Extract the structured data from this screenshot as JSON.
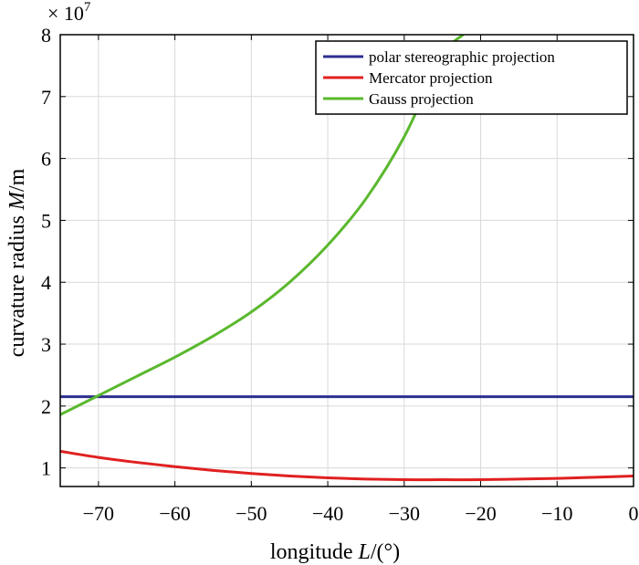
{
  "chart_data": {
    "type": "line",
    "title": "",
    "xlabel": "longitude",
    "xlabel_var": "L",
    "xlabel_unit": "/(°)",
    "ylabel": "curvature radius",
    "ylabel_var": "M",
    "ylabel_unit": "/m",
    "y_multiplier_base": "× 10",
    "y_multiplier_exp": "7",
    "xlim": [
      -75,
      0
    ],
    "ylim": [
      0.7,
      8
    ],
    "xticks": [
      -70,
      -60,
      -50,
      -40,
      -30,
      -20,
      -10,
      0
    ],
    "xtick_labels": [
      "−70",
      "−60",
      "−50",
      "−40",
      "−30",
      "−20",
      "−10",
      "0"
    ],
    "yticks": [
      1,
      2,
      3,
      4,
      5,
      6,
      7,
      8
    ],
    "ytick_labels": [
      "1",
      "2",
      "3",
      "4",
      "5",
      "6",
      "7",
      "8"
    ],
    "grid": true,
    "legend_position": "top-right",
    "series": [
      {
        "name": "polar stereographic projection",
        "color": "#2e2f8f",
        "x": [
          -75,
          -60,
          -45,
          -30,
          -15,
          0
        ],
        "y": [
          2.15,
          2.15,
          2.15,
          2.15,
          2.15,
          2.15
        ]
      },
      {
        "name": "Mercator projection",
        "color": "#e02020",
        "x": [
          -75,
          -70,
          -65,
          -60,
          -55,
          -50,
          -45,
          -40,
          -35,
          -30,
          -25,
          -20,
          -15,
          -10,
          -5,
          0
        ],
        "y": [
          1.27,
          1.17,
          1.09,
          1.02,
          0.96,
          0.91,
          0.87,
          0.84,
          0.82,
          0.81,
          0.81,
          0.81,
          0.82,
          0.83,
          0.85,
          0.87
        ]
      },
      {
        "name": "Gauss projection",
        "color": "#5ab82e",
        "x": [
          -75,
          -70,
          -65,
          -60,
          -55,
          -50,
          -45,
          -40,
          -35,
          -30,
          -25,
          -22.3
        ],
        "y": [
          1.86,
          2.17,
          2.48,
          2.79,
          3.13,
          3.52,
          4.0,
          4.6,
          5.35,
          6.35,
          7.65,
          8.0
        ]
      }
    ]
  }
}
